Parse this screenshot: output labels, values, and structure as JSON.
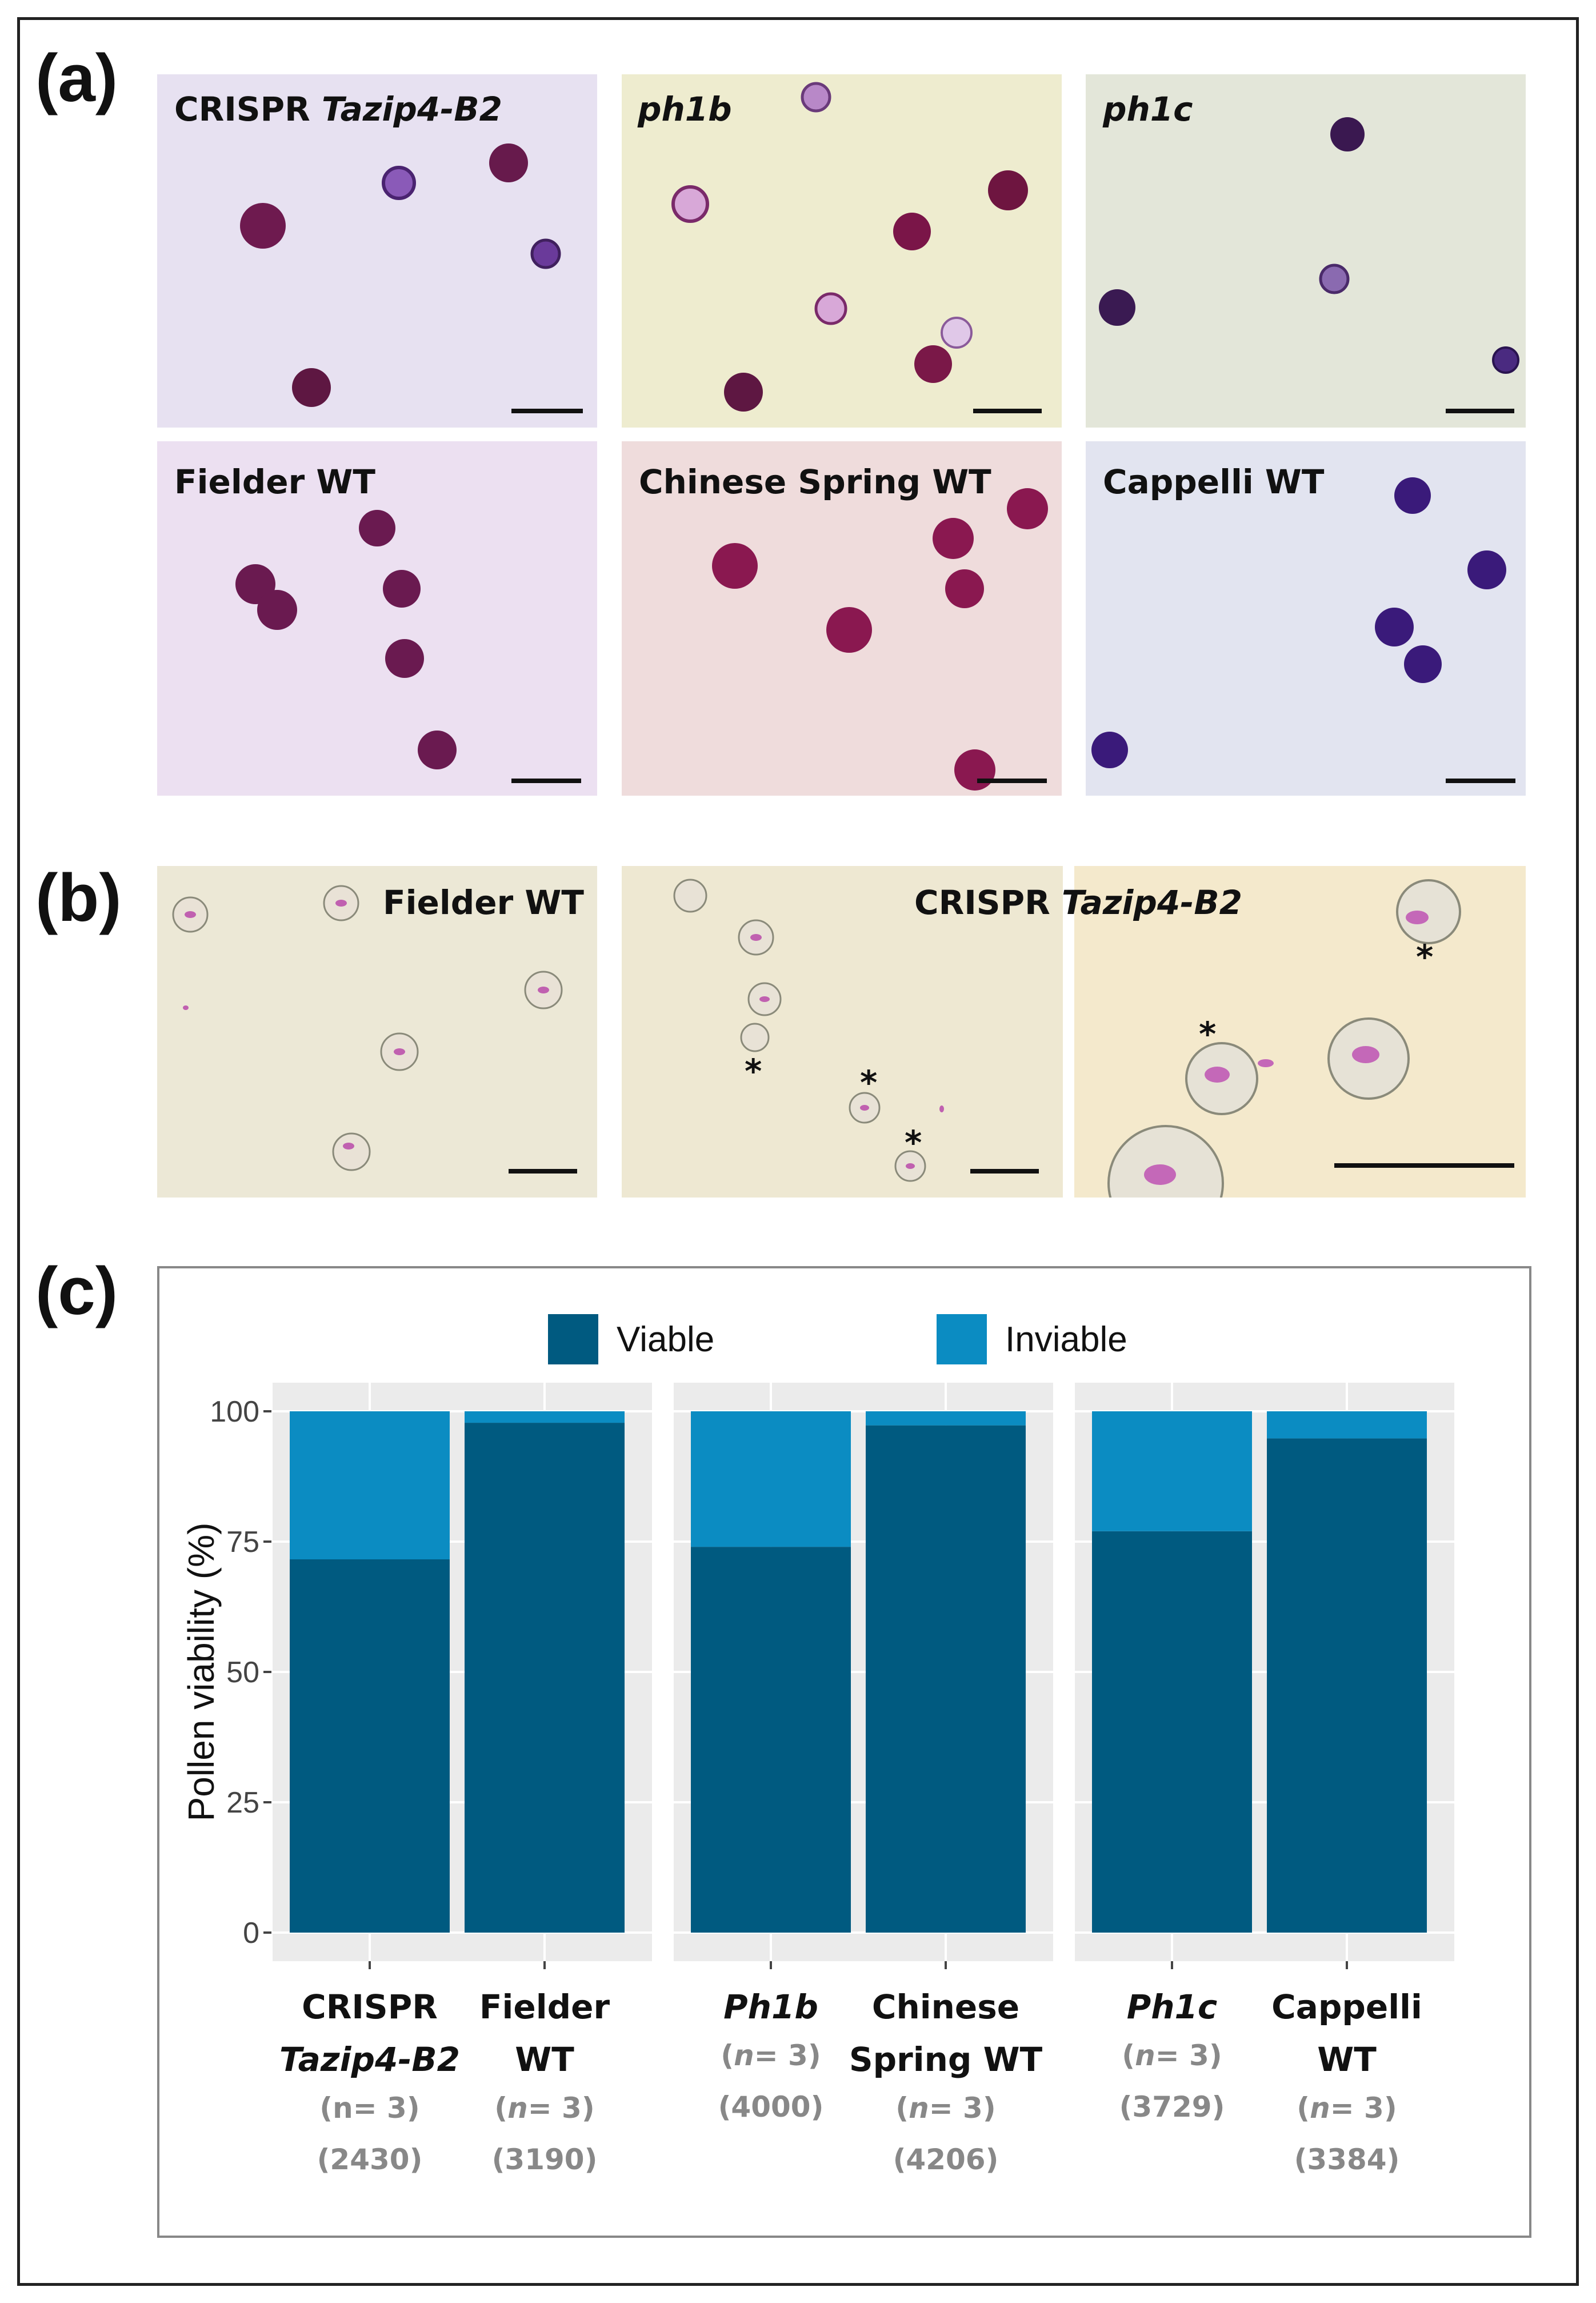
{
  "panels": {
    "a": {
      "label": "(a)",
      "images": [
        {
          "plain": "CRISPR ",
          "italic": "Tazip4-B2"
        },
        {
          "plain": "",
          "italic": "ph1b"
        },
        {
          "plain": "",
          "italic": "ph1c"
        },
        {
          "plain": "Fielder WT",
          "italic": ""
        },
        {
          "plain": "Chinese Spring WT",
          "italic": ""
        },
        {
          "plain": "Cappelli WT",
          "italic": ""
        }
      ]
    },
    "b": {
      "label": "(b)",
      "left_label": "Fielder WT",
      "right_label_plain": "CRISPR ",
      "right_label_italic": "Tazip4-B2",
      "asterisk": "*"
    },
    "c": {
      "label": "(c)"
    }
  },
  "colors": {
    "viable": "#005a80",
    "inviable": "#0b8cc2",
    "panel_bg": "#ebebeb"
  },
  "chart_data": {
    "type": "bar",
    "stacked": true,
    "ylabel": "Pollen viability (%)",
    "ylim": [
      0,
      100
    ],
    "yticks": [
      0,
      25,
      50,
      75,
      100
    ],
    "legend": {
      "position": "top",
      "entries": [
        "Viable",
        "Inviable"
      ]
    },
    "facets": [
      {
        "categories": [
          {
            "name_lines": [
              {
                "text": "CRISPR",
                "italic": false
              },
              {
                "text": "Tazip4-B2",
                "italic": true
              }
            ],
            "n": "3",
            "n_italic": false,
            "count": "(2430)",
            "viable": 71.6,
            "inviable": 28.4
          },
          {
            "name_lines": [
              {
                "text": "Fielder",
                "italic": false
              },
              {
                "text": "WT",
                "italic": false
              }
            ],
            "n": "3",
            "n_italic": true,
            "count": "(3190)",
            "viable": 97.8,
            "inviable": 2.2
          }
        ]
      },
      {
        "categories": [
          {
            "name_lines": [
              {
                "text": "Ph1b",
                "italic": true
              }
            ],
            "n": "3",
            "n_italic": true,
            "count": "(4000)",
            "viable": 74.0,
            "inviable": 26.0
          },
          {
            "name_lines": [
              {
                "text": "Chinese",
                "italic": false
              },
              {
                "text": "Spring WT",
                "italic": false
              }
            ],
            "n": "3",
            "n_italic": true,
            "count": "(4206)",
            "viable": 97.3,
            "inviable": 2.7
          }
        ]
      },
      {
        "categories": [
          {
            "name_lines": [
              {
                "text": "Ph1c",
                "italic": true
              }
            ],
            "n": "3",
            "n_italic": true,
            "count": "(3729)",
            "viable": 77.0,
            "inviable": 23.0
          },
          {
            "name_lines": [
              {
                "text": "Cappelli",
                "italic": false
              },
              {
                "text": "WT",
                "italic": false
              }
            ],
            "n": "3",
            "n_italic": true,
            "count": "(3384)",
            "viable": 94.8,
            "inviable": 5.2
          }
        ]
      }
    ]
  }
}
